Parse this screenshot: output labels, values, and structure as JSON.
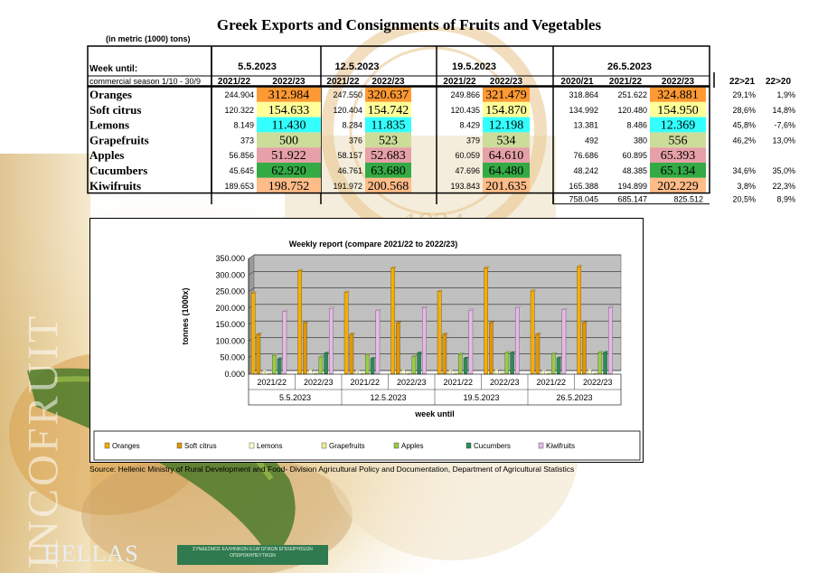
{
  "title": "Greek Exports and Consignments of Fruits and Vegetables",
  "units_note": "(in metric (1000) tons)",
  "branding": {
    "side_text": "INCOFRUIT",
    "bottom_text": "HELLAS",
    "seal_year": "1934",
    "ministry_logo_text": "ΣΥΝΔΕΣΜΟΣ ΕΛΛΗΝΙΚΩΝ ΕΞΑΓΩΓΙΚΩΝ ΕΠΙΧΕΙΡΗΣΕΩΝ ΟΠΩΡΟΚΗΠΕΥΤΙΚΩΝ"
  },
  "source": "Source: Hellenic Ministry of Rural Development and Food- Division Agricultural Policy and Documentation, Department of Agricultural Statistics",
  "table": {
    "week_label": "Week until:",
    "season_label": "commercial season 1/10 - 30/9",
    "weeks": [
      {
        "date": "5.5.2023",
        "cols": [
          "2021/22",
          "2022/23"
        ]
      },
      {
        "date": "12.5.2023",
        "cols": [
          "2021/22",
          "2022/23"
        ]
      },
      {
        "date": "19.5.2023",
        "cols": [
          "2021/22",
          "2022/23"
        ]
      },
      {
        "date": "26.5.2023",
        "cols": [
          "2020/21",
          "2021/22",
          "2022/23"
        ]
      }
    ],
    "change_headers": [
      "22>21",
      "22>20"
    ],
    "rows": [
      {
        "name": "Oranges",
        "color": "#ff9933",
        "values": [
          "244.904",
          "312.984",
          "247.550",
          "320.637",
          "249.866",
          "321.479",
          "318.864",
          "251.622",
          "324.881"
        ],
        "changes": [
          "29,1%",
          "1,9%"
        ]
      },
      {
        "name": "Soft citrus",
        "color": "#ffff99",
        "values": [
          "120.322",
          "154.633",
          "120.404",
          "154.742",
          "120.435",
          "154.870",
          "134.992",
          "120.480",
          "154.950"
        ],
        "changes": [
          "28,6%",
          "14,8%"
        ]
      },
      {
        "name": "Lemons",
        "color": "#33ffff",
        "values": [
          "8.149",
          "11.430",
          "8.284",
          "11.835",
          "8.429",
          "12.198",
          "13.381",
          "8.486",
          "12.369"
        ],
        "changes": [
          "45,8%",
          "-7,6%"
        ]
      },
      {
        "name": "Grapefruits",
        "color": "#ccdd99",
        "values": [
          "373",
          "500",
          "376",
          "523",
          "379",
          "534",
          "492",
          "380",
          "556"
        ],
        "changes": [
          "46,2%",
          "13,0%"
        ]
      },
      {
        "name": "Apples",
        "color": "#e6a0a8",
        "values": [
          "56.856",
          "51.922",
          "58.157",
          "52.683",
          "60.059",
          "64.610",
          "76.686",
          "60.895",
          "65.393"
        ],
        "changes": [
          "",
          ""
        ]
      },
      {
        "name": "Cucumbers",
        "color": "#33aa44",
        "values": [
          "45.645",
          "62.920",
          "46.761",
          "63.680",
          "47.696",
          "64.480",
          "48.242",
          "48.385",
          "65.134"
        ],
        "changes": [
          "34,6%",
          "35,0%"
        ]
      },
      {
        "name": "Kiwifruits",
        "color": "#ffbb88",
        "values": [
          "189.653",
          "198.752",
          "191.972",
          "200.568",
          "193.843",
          "201.635",
          "165.388",
          "194.899",
          "202.229"
        ],
        "changes": [
          "3,8%",
          "22,3%"
        ]
      }
    ],
    "totals": {
      "values": [
        "758.045",
        "685.147",
        "825.512"
      ],
      "changes": [
        "20,5%",
        "8,9%"
      ]
    }
  },
  "chart_data": {
    "type": "bar",
    "title": "Weekly report (compare 2021/22 to 2022/23)",
    "xlabel": "week until",
    "ylabel": "tonnes (1000x)",
    "ylim": [
      0,
      350000
    ],
    "yticks": [
      "0.000",
      "50.000",
      "100.000",
      "150.000",
      "200.000",
      "250.000",
      "300.000",
      "350.000"
    ],
    "grid": true,
    "legend_position": "bottom",
    "plot_bg": "#c0c0c0",
    "groups": [
      "5.5.2023",
      "12.5.2023",
      "19.5.2023",
      "26.5.2023"
    ],
    "categories": [
      "2021/22",
      "2022/23",
      "2021/22",
      "2022/23",
      "2021/22",
      "2022/23",
      "2021/22",
      "2022/23"
    ],
    "series": [
      {
        "name": "Oranges",
        "color": "#f6ad00",
        "values": [
          244904,
          312984,
          247550,
          320637,
          249866,
          321479,
          251622,
          324881
        ]
      },
      {
        "name": "Soft citrus",
        "color": "#e39600",
        "values": [
          120322,
          154633,
          120404,
          154742,
          120435,
          154870,
          120480,
          154950
        ]
      },
      {
        "name": "Lemons",
        "color": "#ffffcc",
        "values": [
          8149,
          11430,
          8284,
          11835,
          8429,
          12198,
          8486,
          12369
        ]
      },
      {
        "name": "Grapefruits",
        "color": "#eeee99",
        "values": [
          373,
          500,
          376,
          523,
          379,
          534,
          380,
          556
        ]
      },
      {
        "name": "Apples",
        "color": "#99cc44",
        "values": [
          56856,
          51922,
          58157,
          52683,
          60059,
          64610,
          60895,
          65393
        ]
      },
      {
        "name": "Cucumbers",
        "color": "#2e8b57",
        "values": [
          45645,
          62920,
          46761,
          63680,
          47696,
          64480,
          48385,
          65134
        ]
      },
      {
        "name": "Kiwifruits",
        "color": "#e8b8e8",
        "values": [
          189653,
          198752,
          191972,
          200568,
          193843,
          201635,
          194899,
          202229
        ]
      }
    ]
  }
}
